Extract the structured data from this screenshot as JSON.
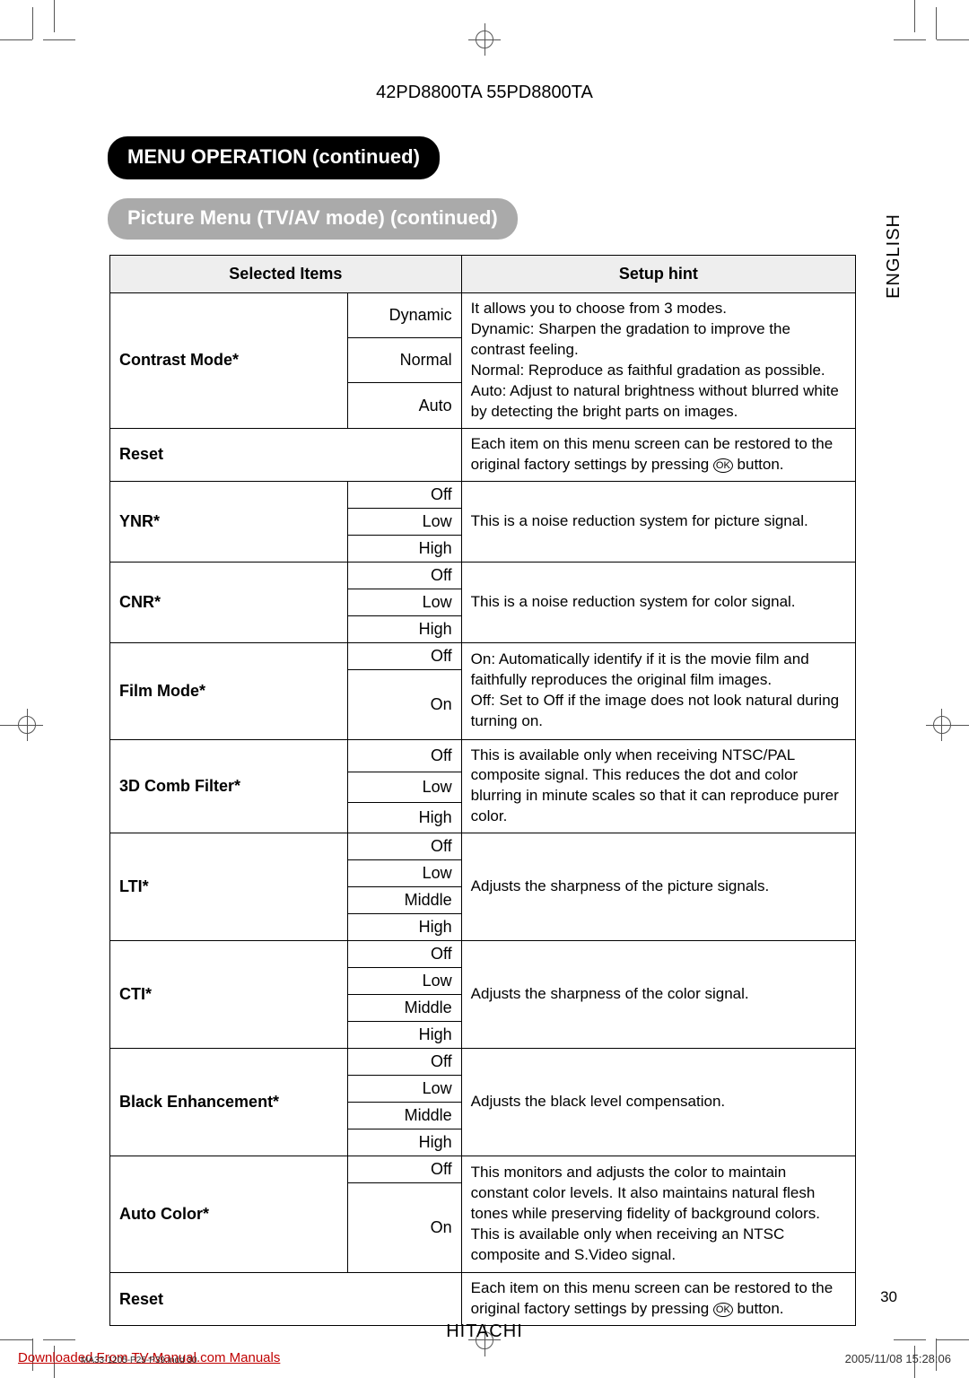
{
  "model_header": "42PD8800TA  55PD8800TA",
  "section_title": "MENU OPERATION (continued)",
  "subsection_title": "Picture Menu (TV/AV mode) (continued)",
  "side_language": "ENGLISH",
  "table_headers": {
    "col1": "Selected Items",
    "col2": "Setup hint"
  },
  "rows": [
    {
      "item": "Contrast Mode*",
      "options": [
        "Dynamic",
        "Normal",
        "Auto"
      ],
      "hint": "It allows you to choose from 3 modes.\nDynamic: Sharpen the gradation to improve the contrast feeling.\nNormal: Reproduce as faithful gradation as possible.\nAuto: Adjust to natural brightness without blurred white by detecting the bright parts on images."
    },
    {
      "item": "Reset",
      "options": [],
      "hint_prefix": "Each item on this menu screen can be restored to the original factory settings by pressing ",
      "hint_ok": "OK",
      "hint_suffix": " button."
    },
    {
      "item": "YNR*",
      "options": [
        "Off",
        "Low",
        "High"
      ],
      "hint": "This is a noise reduction system for picture signal."
    },
    {
      "item": "CNR*",
      "options": [
        "Off",
        "Low",
        "High"
      ],
      "hint": "This is a noise reduction system for color signal."
    },
    {
      "item": "Film Mode*",
      "options": [
        "Off",
        "On"
      ],
      "hint": "On: Automatically identify if it is the movie film and faithfully reproduces the original film images.\nOff: Set to Off if the image does not look natural during turning on."
    },
    {
      "item": "3D Comb Filter*",
      "options": [
        "Off",
        "Low",
        "High"
      ],
      "hint": "This is available only when receiving  NTSC/PAL composite signal. This reduces the dot and color blurring in minute scales so that it can reproduce purer color."
    },
    {
      "item": "LTI*",
      "options": [
        "Off",
        "Low",
        "Middle",
        "High"
      ],
      "hint": "Adjusts the sharpness of the picture signals."
    },
    {
      "item": "CTI*",
      "options": [
        "Off",
        "Low",
        "Middle",
        "High"
      ],
      "hint": "Adjusts the sharpness of the color signal."
    },
    {
      "item": "Black Enhancement*",
      "options": [
        "Off",
        "Low",
        "Middle",
        "High"
      ],
      "hint": "Adjusts the black level compensation."
    },
    {
      "item": "Auto Color*",
      "options": [
        "Off",
        "On"
      ],
      "hint": "This monitors and adjusts the color to maintain constant color levels. It also maintains natural flesh tones while preserving fidelity of background colors. This is available only when receiving an NTSC composite and S.Video signal."
    },
    {
      "item": "Reset",
      "options": [],
      "hint_prefix": "Each item on this menu screen can be restored to the original factory settings by pressing ",
      "hint_ok": "OK",
      "hint_suffix": " button."
    }
  ],
  "page_number": "30",
  "brand": "HITACHI",
  "download_link": "Downloaded From TV-Manual.com Manuals",
  "footer_indd": "MA33-1205-P25-P39.indd   30",
  "footer_date": "2005/11/08   15:28:06",
  "ok_label": "OK"
}
